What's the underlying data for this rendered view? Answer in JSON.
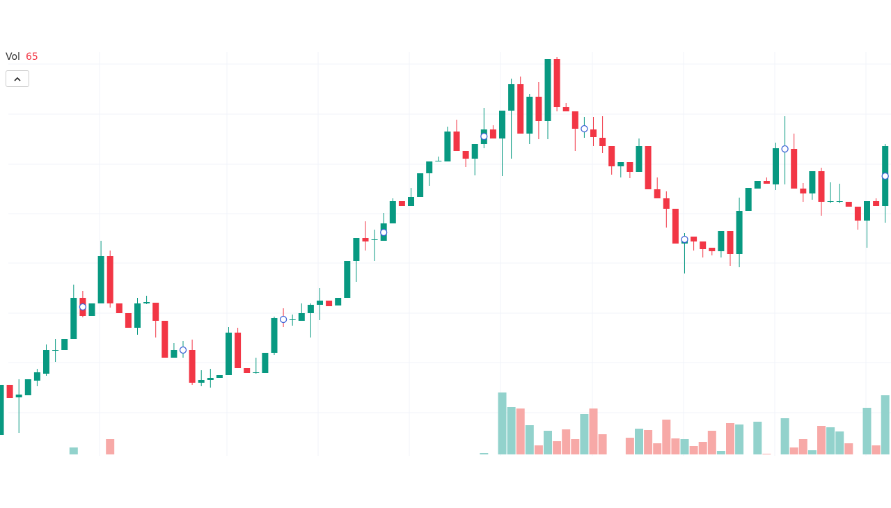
{
  "chart_data": {
    "type": "candlestick",
    "legend": {
      "label": "Vol",
      "value": 65
    },
    "legend_value_color": "#f23645",
    "up_color": "#089981",
    "down_color": "#f23645",
    "volume_up_color": "#92d2cc",
    "volume_down_color": "#f7a9a7",
    "marker_color": "#3d63d6",
    "grid": true,
    "ylim": [
      0,
      580
    ],
    "volume_ylim": [
      0,
      138
    ],
    "open": [
      30,
      102,
      84,
      87,
      108,
      118,
      151,
      152,
      168,
      227,
      201,
      219,
      287,
      219,
      205,
      184,
      219,
      220,
      194,
      141,
      152,
      152,
      105,
      109,
      112,
      116,
      177,
      126,
      119,
      119,
      148,
      198,
      195,
      194,
      205,
      217,
      223,
      216,
      227,
      280,
      313,
      310,
      309,
      334,
      366,
      359,
      372,
      406,
      423,
      423,
      466,
      438,
      427,
      448,
      469,
      456,
      496,
      534,
      463,
      516,
      481,
      570,
      501,
      495,
      469,
      469,
      457,
      445,
      416,
      422,
      408,
      445,
      383,
      370,
      355,
      305,
      315,
      308,
      299,
      294,
      323,
      290,
      352,
      384,
      395,
      390,
      441,
      441,
      384,
      377,
      409,
      365,
      365,
      365,
      358,
      338,
      366,
      359
    ],
    "high": [
      102,
      102,
      110,
      110,
      125,
      160,
      168,
      168,
      246,
      237,
      219,
      309,
      295,
      219,
      205,
      227,
      230,
      220,
      194,
      162,
      165,
      167,
      123,
      125,
      116,
      185,
      184,
      126,
      141,
      148,
      200,
      212,
      203,
      219,
      219,
      241,
      223,
      227,
      280,
      313,
      337,
      325,
      349,
      370,
      366,
      385,
      406,
      423,
      430,
      473,
      483,
      438,
      448,
      500,
      475,
      496,
      542,
      545,
      520,
      537,
      570,
      573,
      507,
      495,
      487,
      487,
      488,
      445,
      422,
      422,
      456,
      445,
      400,
      380,
      355,
      320,
      315,
      308,
      299,
      323,
      323,
      371,
      385,
      395,
      400,
      450,
      488,
      463,
      392,
      409,
      414,
      393,
      391,
      365,
      358,
      366,
      370,
      448
    ],
    "low": [
      30,
      83,
      33,
      87,
      100,
      115,
      135,
      152,
      168,
      199,
      201,
      219,
      213,
      205,
      184,
      174,
      218,
      170,
      141,
      141,
      141,
      102,
      100,
      98,
      112,
      116,
      126,
      119,
      118,
      119,
      145,
      185,
      187,
      194,
      170,
      195,
      215,
      216,
      227,
      250,
      295,
      280,
      309,
      334,
      359,
      359,
      372,
      388,
      423,
      423,
      438,
      415,
      403,
      442,
      456,
      402,
      427,
      463,
      448,
      455,
      455,
      495,
      495,
      438,
      457,
      445,
      435,
      404,
      400,
      399,
      408,
      383,
      370,
      328,
      305,
      262,
      295,
      285,
      288,
      285,
      273,
      271,
      352,
      384,
      391,
      382,
      390,
      384,
      365,
      368,
      345,
      363,
      363,
      358,
      325,
      299,
      359,
      335
    ],
    "close": [
      102,
      83,
      88,
      110,
      120,
      152,
      152,
      168,
      227,
      201,
      219,
      287,
      219,
      205,
      184,
      219,
      221,
      194,
      141,
      152,
      154,
      105,
      109,
      112,
      116,
      177,
      126,
      119,
      120,
      148,
      198,
      194,
      196,
      205,
      217,
      223,
      215,
      227,
      280,
      313,
      308,
      311,
      334,
      366,
      359,
      372,
      406,
      423,
      424,
      466,
      438,
      427,
      448,
      469,
      456,
      496,
      534,
      463,
      516,
      481,
      570,
      501,
      495,
      470,
      470,
      458,
      445,
      416,
      422,
      408,
      445,
      383,
      370,
      355,
      305,
      313,
      308,
      297,
      294,
      323,
      290,
      352,
      385,
      395,
      391,
      442,
      442,
      384,
      377,
      409,
      365,
      366,
      366,
      358,
      338,
      366,
      359,
      445
    ],
    "volume": [
      0,
      0,
      0,
      0,
      0,
      0,
      0,
      0,
      10,
      0,
      0,
      0,
      22,
      0,
      0,
      0,
      0,
      0,
      0,
      0,
      0,
      0,
      0,
      0,
      0,
      0,
      0,
      0,
      0,
      0,
      0,
      0,
      0,
      0,
      0,
      0,
      0,
      0,
      0,
      0,
      0,
      0,
      0,
      0,
      0,
      0,
      0,
      0,
      0,
      0,
      0,
      0,
      0,
      2,
      0,
      89,
      68,
      66,
      42,
      13,
      34,
      19,
      36,
      22,
      58,
      66,
      29,
      0,
      0,
      24,
      37,
      35,
      16,
      50,
      23,
      22,
      12,
      18,
      34,
      5,
      45,
      43,
      0,
      47,
      1,
      0,
      52,
      10,
      22,
      6,
      41,
      39,
      33,
      16,
      0,
      67,
      13,
      85
    ],
    "markers": [
      {
        "x": 9,
        "y": 214
      },
      {
        "x": 20,
        "y": 152
      },
      {
        "x": 31,
        "y": 196
      },
      {
        "x": 42,
        "y": 321
      },
      {
        "x": 53,
        "y": 459
      },
      {
        "x": 64,
        "y": 470
      },
      {
        "x": 75,
        "y": 311
      },
      {
        "x": 86,
        "y": 441
      },
      {
        "x": 97,
        "y": 402
      }
    ]
  }
}
